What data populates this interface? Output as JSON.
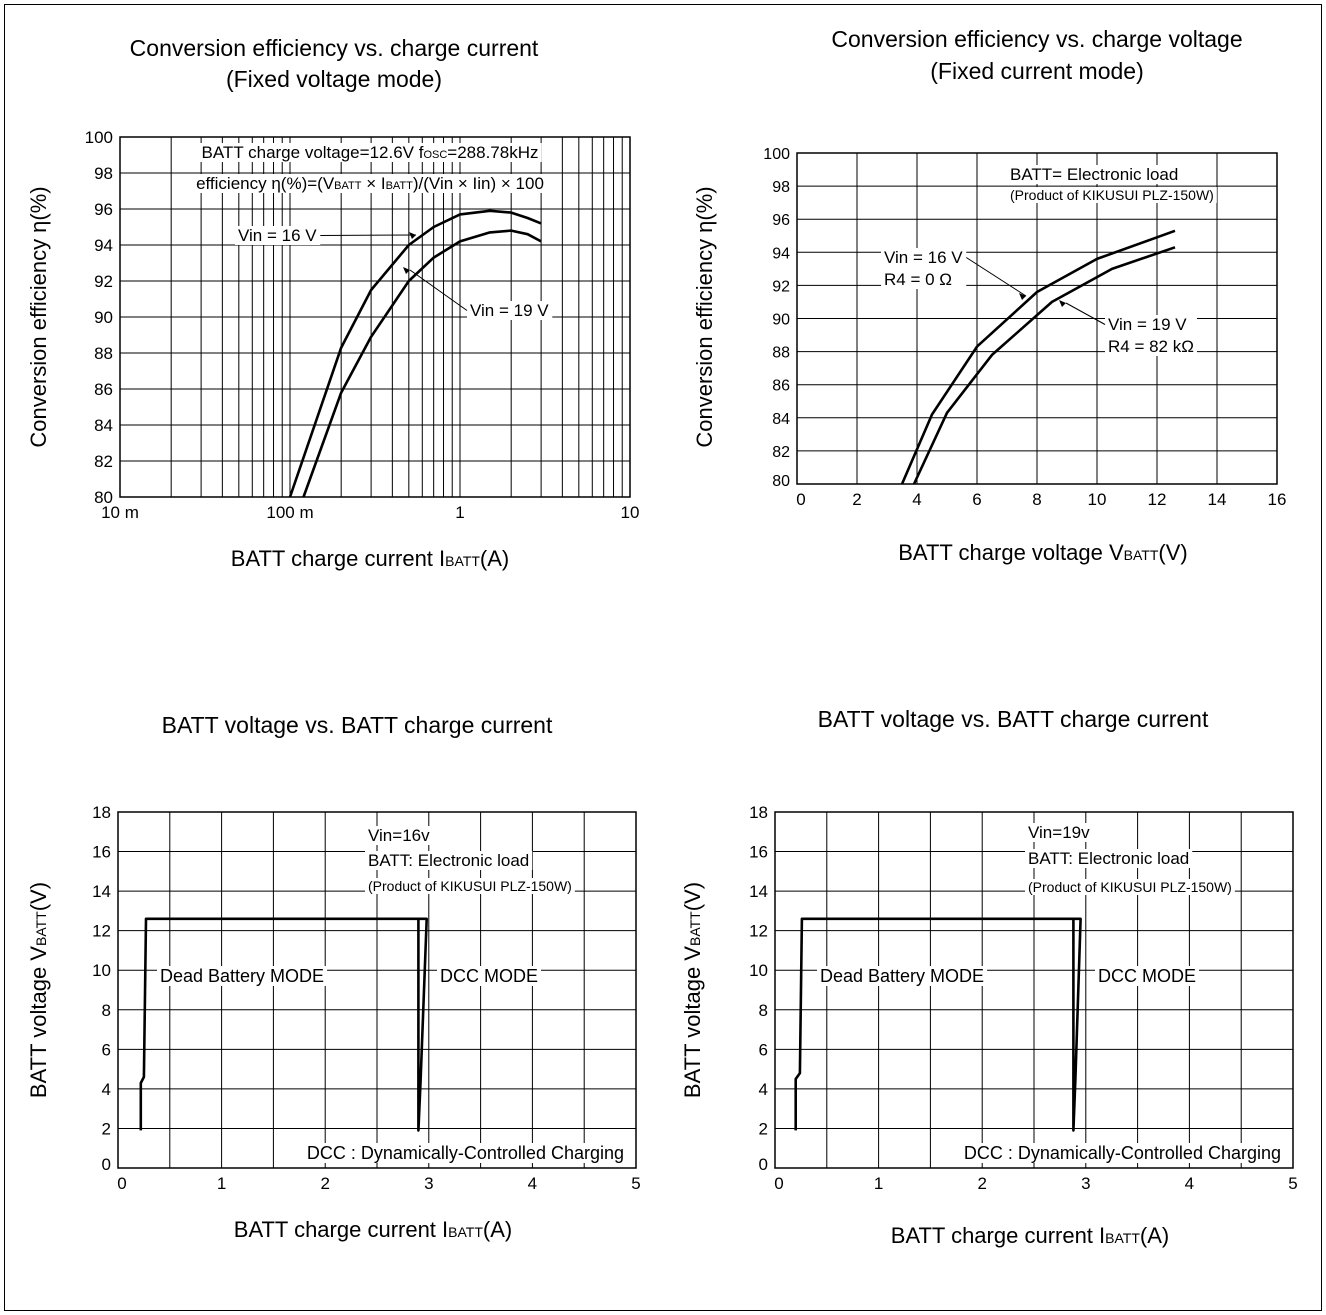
{
  "chart_data": [
    {
      "type": "line",
      "title": "Conversion efficiency vs. charge current",
      "subtitle": "(Fixed voltage mode)",
      "xlabel": "BATT charge current I",
      "xlabel_sub": "BATT",
      "xlabel_unit": "(A)",
      "ylabel": "Conversion efficiency η(%)",
      "x_scale": "log",
      "xlim": [
        0.01,
        10
      ],
      "ylim": [
        80,
        100
      ],
      "x_ticks": [
        0.01,
        0.1,
        1,
        10
      ],
      "x_tick_labels": [
        "10 m",
        "100 m",
        "1",
        "10"
      ],
      "y_ticks": [
        80,
        82,
        84,
        86,
        88,
        90,
        92,
        94,
        96,
        98,
        100
      ],
      "y_tick_labels": [
        "80",
        "82",
        "84",
        "86",
        "88",
        "90",
        "92",
        "94",
        "96",
        "98",
        "100"
      ],
      "grid": true,
      "notes": [
        {
          "segs": [
            [
              "BATT charge voltage=12.6V f",
              ""
            ],
            [
              "OSC",
              "sub"
            ],
            [
              "=288.78kHz",
              ""
            ]
          ]
        },
        {
          "segs": [
            [
              "efficiency η(%)=(V",
              ""
            ],
            [
              "BATT",
              "sub"
            ],
            [
              " × I",
              ""
            ],
            [
              "BATT",
              "sub"
            ],
            [
              ")/(Vin × Iin) × 100",
              ""
            ]
          ]
        }
      ],
      "series": [
        {
          "name": "Vin = 16 V",
          "x": [
            0.1,
            0.2,
            0.3,
            0.5,
            0.7,
            1.0,
            1.5,
            2.0,
            2.5,
            3.0
          ],
          "y": [
            80.0,
            88.3,
            91.5,
            94.0,
            95.0,
            95.7,
            95.9,
            95.8,
            95.5,
            95.2
          ]
        },
        {
          "name": "Vin = 19 V",
          "x": [
            0.12,
            0.2,
            0.3,
            0.5,
            0.7,
            1.0,
            1.5,
            2.0,
            2.5,
            3.0
          ],
          "y": [
            80.0,
            85.8,
            88.9,
            92.0,
            93.3,
            94.2,
            94.7,
            94.8,
            94.6,
            94.2
          ]
        }
      ]
    },
    {
      "type": "line",
      "title": "Conversion efficiency vs. charge voltage",
      "subtitle": "(Fixed current mode)",
      "xlabel": "BATT charge voltage V",
      "xlabel_sub": "BATT",
      "xlabel_unit": "(V)",
      "ylabel": "Conversion efficiency η(%)",
      "x_scale": "linear",
      "xlim": [
        0,
        16
      ],
      "ylim": [
        80,
        100
      ],
      "x_ticks": [
        0,
        2,
        4,
        6,
        8,
        10,
        12,
        14,
        16
      ],
      "x_tick_labels": [
        "0",
        "2",
        "4",
        "6",
        "8",
        "10",
        "12",
        "14",
        "16"
      ],
      "y_ticks": [
        80,
        82,
        84,
        86,
        88,
        90,
        92,
        94,
        96,
        98,
        100
      ],
      "y_tick_labels": [
        "80",
        "82",
        "84",
        "86",
        "88",
        "90",
        "92",
        "94",
        "96",
        "98",
        "100"
      ],
      "grid": true,
      "notes": [
        {
          "segs": [
            [
              "BATT= Electronic load",
              ""
            ]
          ]
        },
        {
          "segs": [
            [
              "(Product of KIKUSUI PLZ-150W)",
              "small"
            ]
          ]
        }
      ],
      "series": [
        {
          "name": "Vin = 16 V",
          "label_line2": "R4 = 0 Ω",
          "x": [
            3.5,
            4.5,
            6.0,
            8.0,
            10.0,
            12.6
          ],
          "y": [
            80.0,
            84.2,
            88.3,
            91.6,
            93.6,
            95.3
          ]
        },
        {
          "name": "Vin = 19 V",
          "label_line2": "R4 = 82 kΩ",
          "x": [
            3.9,
            5.0,
            6.5,
            8.5,
            10.5,
            12.6
          ],
          "y": [
            80.0,
            84.3,
            87.8,
            91.0,
            93.0,
            94.3
          ]
        }
      ]
    },
    {
      "type": "line",
      "title": "BATT voltage vs. BATT charge current",
      "xlabel": "BATT charge current I",
      "xlabel_sub": "BATT",
      "xlabel_unit": "(A)",
      "ylabel": "BATT voltage V",
      "ylabel_sub": "BATT",
      "ylabel_unit": "(V)",
      "x_scale": "linear",
      "xlim": [
        0,
        5
      ],
      "ylim": [
        0,
        18
      ],
      "x_ticks": [
        0,
        1,
        2,
        3,
        4,
        5
      ],
      "x_tick_labels": [
        "0",
        "1",
        "2",
        "3",
        "4",
        "5"
      ],
      "y_ticks": [
        0,
        2,
        4,
        6,
        8,
        10,
        12,
        14,
        16,
        18
      ],
      "y_tick_labels": [
        "0",
        "2",
        "4",
        "6",
        "8",
        "10",
        "12",
        "14",
        "16",
        "18"
      ],
      "grid": true,
      "notes": [
        {
          "segs": [
            [
              "Vin=16v",
              ""
            ]
          ]
        },
        {
          "segs": [
            [
              "BATT: Electronic load",
              ""
            ]
          ]
        },
        {
          "segs": [
            [
              "(Product of KIKUSUI PLZ-150W)",
              "small"
            ]
          ]
        }
      ],
      "region_labels": [
        "Dead Battery MODE",
        "DCC MODE"
      ],
      "footnote": "DCC : Dynamically-Controlled Charging",
      "series": [
        {
          "x": [
            0.22,
            0.22,
            0.25,
            0.27,
            2.9,
            2.9,
            2.92,
            2.98,
            0.27
          ],
          "y": [
            1.9,
            4.3,
            4.6,
            12.6,
            12.6,
            1.9,
            4.3,
            12.6,
            12.6
          ]
        }
      ]
    },
    {
      "type": "line",
      "title": "BATT voltage vs. BATT charge current",
      "xlabel": "BATT charge current I",
      "xlabel_sub": "BATT",
      "xlabel_unit": "(A)",
      "ylabel": "BATT voltage V",
      "ylabel_sub": "BATT",
      "ylabel_unit": "(V)",
      "x_scale": "linear",
      "xlim": [
        0,
        5
      ],
      "ylim": [
        0,
        18
      ],
      "x_ticks": [
        0,
        1,
        2,
        3,
        4,
        5
      ],
      "x_tick_labels": [
        "0",
        "1",
        "2",
        "3",
        "4",
        "5"
      ],
      "y_ticks": [
        0,
        2,
        4,
        6,
        8,
        10,
        12,
        14,
        16,
        18
      ],
      "y_tick_labels": [
        "0",
        "2",
        "4",
        "6",
        "8",
        "10",
        "12",
        "14",
        "16",
        "18"
      ],
      "grid": true,
      "notes": [
        {
          "segs": [
            [
              "Vin=19v",
              ""
            ]
          ]
        },
        {
          "segs": [
            [
              "BATT: Electronic load",
              ""
            ]
          ]
        },
        {
          "segs": [
            [
              "(Product of KIKUSUI PLZ-150W)",
              "small"
            ]
          ]
        }
      ],
      "region_labels": [
        "Dead Battery MODE",
        "DCC MODE"
      ],
      "footnote": "DCC : Dynamically-Controlled Charging",
      "series": [
        {
          "x": [
            0.2,
            0.2,
            0.24,
            0.26,
            2.88,
            2.88,
            2.9,
            2.95,
            0.26
          ],
          "y": [
            1.9,
            4.5,
            4.8,
            12.6,
            12.6,
            1.9,
            4.5,
            12.6,
            12.6
          ]
        }
      ]
    }
  ]
}
